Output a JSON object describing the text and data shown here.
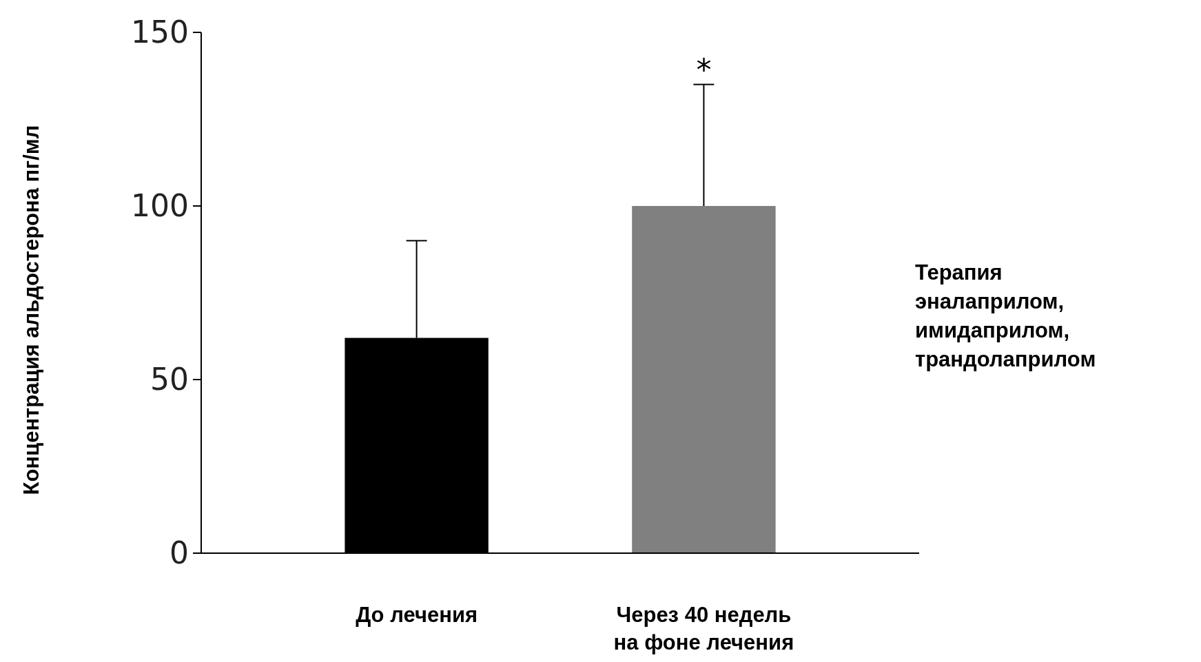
{
  "chart_data": {
    "type": "bar",
    "ylabel": "Концентрация альдостерона пг/мл",
    "categories": [
      "До лечения",
      "Через 40 недель на фоне лечения"
    ],
    "values": [
      62,
      100
    ],
    "colors": [
      "#000000",
      "#808080"
    ],
    "errors": [
      [
        62,
        90
      ],
      [
        100,
        135
      ]
    ],
    "ylim": [
      0,
      150
    ],
    "yticks": [
      0,
      50,
      100,
      150
    ],
    "grid": false,
    "annotations": [
      {
        "text": "*",
        "x": "Через 40 недель на фоне лечения",
        "y": 135
      },
      "Терапия эналаприлом, имидаприлом, трандолаприлом"
    ]
  }
}
